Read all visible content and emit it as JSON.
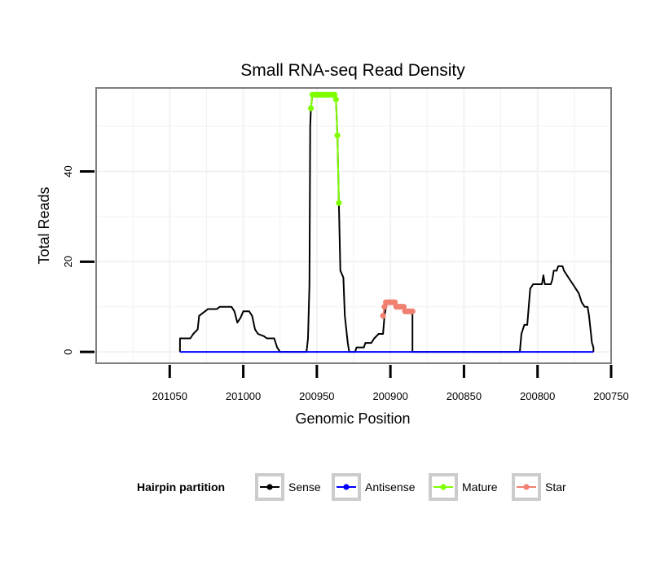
{
  "chart_data": {
    "type": "line",
    "title": "Small RNA-seq Read Density",
    "xlabel": "Genomic Position",
    "ylabel": "Total Reads",
    "xlim": [
      201100,
      200750
    ],
    "ylim": [
      -2.5,
      58.5
    ],
    "x_reversed": true,
    "grid": true,
    "x_ticks": [
      201050,
      201000,
      200950,
      200900,
      200850,
      200800,
      200750
    ],
    "x_tick_labels": [
      "201050",
      "201000",
      "200950",
      "200900",
      "200850",
      "200800",
      "200750"
    ],
    "y_ticks": [
      0,
      20,
      40
    ],
    "y_tick_labels": [
      "0",
      "20",
      "40"
    ],
    "legend": {
      "title": "Hairpin partition",
      "position": "bottom",
      "entries": [
        "Sense",
        "Antisense",
        "Mature",
        "Star"
      ]
    },
    "colors": {
      "sense": "#000000",
      "antisense": "#0000ff",
      "mature": "#7fff00",
      "star": "#f08070",
      "panel_border": "#7f7f7f",
      "grid": "#f2f2f2"
    },
    "series": [
      {
        "name": "Sense",
        "color": "#000000",
        "points": [
          [
            201043,
            0
          ],
          [
            201043,
            3
          ],
          [
            201036,
            3
          ],
          [
            201034,
            4
          ],
          [
            201031,
            5
          ],
          [
            201030,
            8
          ],
          [
            201026,
            9
          ],
          [
            201024,
            9.5
          ],
          [
            201018,
            9.5
          ],
          [
            201016,
            10
          ],
          [
            201008,
            10
          ],
          [
            201006,
            9
          ],
          [
            201004,
            6.5
          ],
          [
            201002,
            7.5
          ],
          [
            201000,
            9
          ],
          [
            200996,
            9
          ],
          [
            200994,
            8
          ],
          [
            200992,
            5
          ],
          [
            200990,
            4
          ],
          [
            200986,
            3.5
          ],
          [
            200984,
            3
          ],
          [
            200979,
            3
          ],
          [
            200977,
            1
          ],
          [
            200975,
            0
          ],
          [
            200957,
            0
          ],
          [
            200956,
            3
          ],
          [
            200955,
            15
          ],
          [
            200954.5,
            50
          ],
          [
            200954,
            54
          ],
          [
            200953,
            57
          ],
          [
            200949,
            57
          ],
          [
            200943,
            57
          ],
          [
            200938,
            57
          ],
          [
            200937,
            56
          ],
          [
            200936,
            48
          ],
          [
            200935,
            33
          ],
          [
            200934,
            18
          ],
          [
            200932,
            16.5
          ],
          [
            200931,
            8
          ],
          [
            200929,
            2
          ],
          [
            200928,
            0
          ],
          [
            200924,
            0
          ],
          [
            200923,
            1
          ],
          [
            200918,
            1
          ],
          [
            200917,
            2
          ],
          [
            200913,
            2
          ],
          [
            200911,
            3
          ],
          [
            200908,
            4
          ],
          [
            200905,
            4
          ],
          [
            200904,
            8
          ],
          [
            200903,
            10
          ],
          [
            200902,
            11
          ],
          [
            200897,
            11
          ],
          [
            200896,
            10
          ],
          [
            200891,
            10
          ],
          [
            200890,
            9
          ],
          [
            200885,
            9
          ],
          [
            200885,
            0
          ],
          [
            200812,
            0
          ],
          [
            200811,
            4
          ],
          [
            200809,
            6
          ],
          [
            200807,
            6
          ],
          [
            200806,
            10
          ],
          [
            200805,
            14
          ],
          [
            200803,
            15
          ],
          [
            200797,
            15
          ],
          [
            200796,
            17
          ],
          [
            200795,
            15
          ],
          [
            200791,
            15
          ],
          [
            200790,
            16
          ],
          [
            200789,
            18
          ],
          [
            200787,
            18
          ],
          [
            200786,
            19
          ],
          [
            200783,
            19
          ],
          [
            200782,
            18
          ],
          [
            200780,
            17
          ],
          [
            200778,
            16
          ],
          [
            200776,
            15
          ],
          [
            200774,
            14
          ],
          [
            200772,
            13
          ],
          [
            200770,
            11
          ],
          [
            200768,
            10
          ],
          [
            200766,
            10
          ],
          [
            200765,
            8
          ],
          [
            200764,
            5
          ],
          [
            200763,
            2
          ],
          [
            200762,
            1
          ],
          [
            200762,
            0
          ]
        ]
      },
      {
        "name": "Antisense",
        "color": "#0000ff",
        "points": [
          [
            201043,
            0
          ],
          [
            200762,
            0
          ]
        ]
      },
      {
        "name": "Mature",
        "color": "#7fff00",
        "points": [
          [
            200954,
            54
          ],
          [
            200953,
            57
          ],
          [
            200952,
            57
          ],
          [
            200951,
            57
          ],
          [
            200950,
            57
          ],
          [
            200949,
            57
          ],
          [
            200948,
            57
          ],
          [
            200947,
            57
          ],
          [
            200946,
            57
          ],
          [
            200945,
            57
          ],
          [
            200944,
            57
          ],
          [
            200943,
            57
          ],
          [
            200942,
            57
          ],
          [
            200941,
            57
          ],
          [
            200940,
            57
          ],
          [
            200939,
            57
          ],
          [
            200938,
            57
          ],
          [
            200937,
            56
          ],
          [
            200936,
            48
          ],
          [
            200935,
            33
          ]
        ]
      },
      {
        "name": "Star",
        "color": "#f08070",
        "points": [
          [
            200905,
            8
          ],
          [
            200904,
            10
          ],
          [
            200903,
            11
          ],
          [
            200902,
            11
          ],
          [
            200901,
            11
          ],
          [
            200900,
            11
          ],
          [
            200899,
            11
          ],
          [
            200898,
            11
          ],
          [
            200897,
            11
          ],
          [
            200896,
            10
          ],
          [
            200895,
            10
          ],
          [
            200894,
            10
          ],
          [
            200893,
            10
          ],
          [
            200892,
            10
          ],
          [
            200891,
            10
          ],
          [
            200890,
            9
          ],
          [
            200889,
            9
          ],
          [
            200888,
            9
          ],
          [
            200887,
            9
          ],
          [
            200886,
            9
          ],
          [
            200885,
            9
          ]
        ]
      }
    ]
  }
}
